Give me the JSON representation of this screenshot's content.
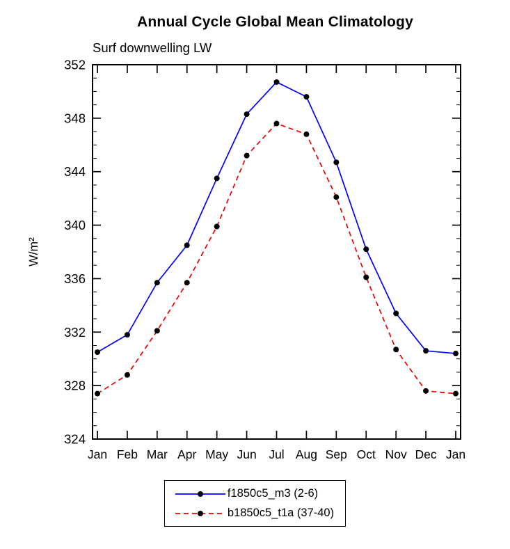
{
  "chart_data": {
    "type": "line",
    "title": "Annual Cycle Global Mean Climatology",
    "subtitle": "Surf downwelling LW",
    "ylabel": "W/m²",
    "xlabel": "",
    "ylim": [
      324,
      352
    ],
    "yticks": [
      324,
      328,
      332,
      336,
      340,
      344,
      348,
      352
    ],
    "y_minor_step": 1,
    "grid": false,
    "legend_position": "bottom-center",
    "x_categories": [
      "Jan",
      "Feb",
      "Mar",
      "Apr",
      "May",
      "Jun",
      "Jul",
      "Aug",
      "Sep",
      "Oct",
      "Nov",
      "Dec",
      "Jan"
    ],
    "series": [
      {
        "name": "f1850c5_m3",
        "label": "f1850c5_m3 (2-6)",
        "color": "#0000ff",
        "line_style": "solid",
        "marker": "circle",
        "marker_color": "#000000",
        "values": [
          330.5,
          331.8,
          335.7,
          338.5,
          343.5,
          348.3,
          350.7,
          349.6,
          344.7,
          338.2,
          333.4,
          330.6,
          330.4
        ]
      },
      {
        "name": "b1850c5_t1a",
        "label": "b1850c5_t1a (37-40)",
        "color": "#ee0000",
        "line_style": "dashed",
        "marker": "circle",
        "marker_color": "#000000",
        "values": [
          327.4,
          328.8,
          332.1,
          335.7,
          339.9,
          345.2,
          347.6,
          346.8,
          342.1,
          336.1,
          330.7,
          327.6,
          327.4
        ]
      }
    ]
  }
}
